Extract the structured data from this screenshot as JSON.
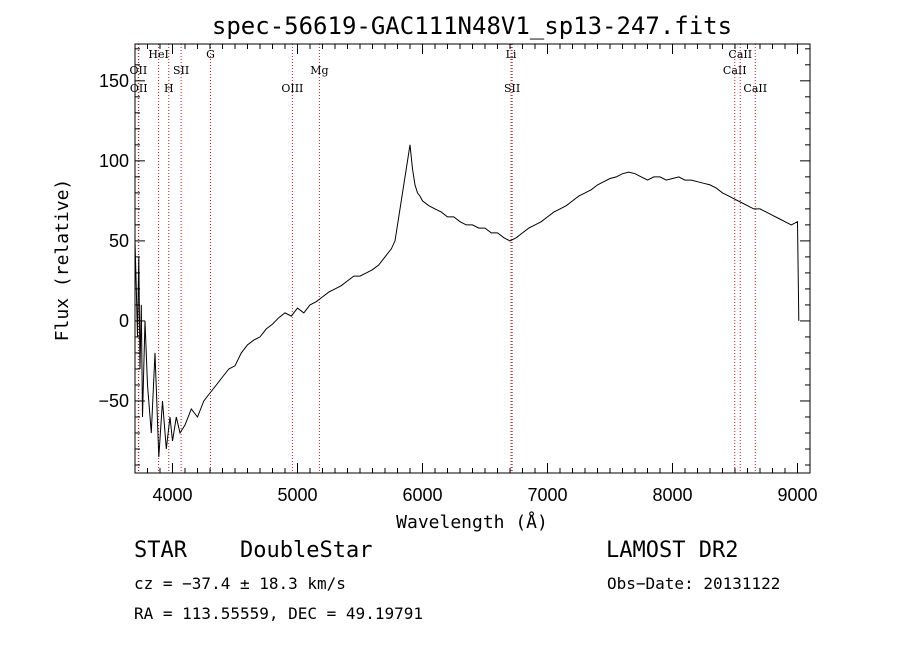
{
  "chart_data": {
    "type": "line",
    "title": "spec-56619-GAC111N48V1_sp13-247.fits",
    "xlabel": "Wavelength (Å)",
    "ylabel": "Flux (relative)",
    "xlim": [
      3700,
      9100
    ],
    "ylim": [
      -95,
      173
    ],
    "x_ticks": [
      4000,
      5000,
      6000,
      7000,
      8000,
      9000
    ],
    "y_ticks": [
      -50,
      0,
      50,
      100,
      150
    ],
    "grid": false,
    "series": [
      {
        "x": [
          3700,
          3710,
          3720,
          3730,
          3740,
          3750,
          3760,
          3780,
          3800,
          3830,
          3860,
          3890,
          3920,
          3950,
          3980,
          4000,
          4030,
          4060,
          4100,
          4150,
          4200,
          4250,
          4300,
          4350,
          4400,
          4450,
          4500,
          4550,
          4600,
          4650,
          4700,
          4750,
          4800,
          4850,
          4900,
          4950,
          5000,
          5050,
          5100,
          5150,
          5200,
          5250,
          5300,
          5350,
          5400,
          5450,
          5500,
          5550,
          5600,
          5650,
          5700,
          5750,
          5780,
          5800,
          5820,
          5840,
          5860,
          5880,
          5900,
          5920,
          5940,
          5960,
          5980,
          6000,
          6050,
          6100,
          6150,
          6200,
          6250,
          6300,
          6350,
          6400,
          6450,
          6500,
          6550,
          6600,
          6650,
          6700,
          6750,
          6800,
          6850,
          6900,
          6950,
          7000,
          7050,
          7100,
          7150,
          7200,
          7250,
          7300,
          7350,
          7400,
          7450,
          7500,
          7550,
          7600,
          7650,
          7700,
          7750,
          7800,
          7850,
          7900,
          7950,
          8000,
          8050,
          8100,
          8150,
          8200,
          8250,
          8300,
          8350,
          8400,
          8450,
          8500,
          8550,
          8600,
          8650,
          8700,
          8750,
          8800,
          8850,
          8900,
          8950,
          9000,
          9010
        ],
        "y": [
          50,
          20,
          -10,
          40,
          -30,
          10,
          -60,
          0,
          -40,
          -70,
          -20,
          -85,
          -50,
          -80,
          -60,
          -75,
          -60,
          -70,
          -65,
          -55,
          -60,
          -50,
          -45,
          -40,
          -35,
          -30,
          -28,
          -20,
          -15,
          -12,
          -10,
          -5,
          -2,
          2,
          5,
          3,
          8,
          5,
          10,
          12,
          15,
          18,
          20,
          22,
          25,
          28,
          28,
          30,
          32,
          35,
          40,
          45,
          50,
          60,
          70,
          80,
          90,
          100,
          110,
          95,
          85,
          80,
          78,
          75,
          72,
          70,
          68,
          65,
          65,
          62,
          60,
          60,
          58,
          58,
          55,
          55,
          52,
          50,
          52,
          55,
          58,
          60,
          62,
          65,
          68,
          70,
          72,
          75,
          78,
          80,
          82,
          85,
          87,
          89,
          90,
          92,
          93,
          92,
          90,
          88,
          90,
          90,
          88,
          89,
          90,
          88,
          88,
          87,
          86,
          85,
          83,
          80,
          78,
          76,
          74,
          72,
          70,
          70,
          68,
          66,
          64,
          62,
          60,
          62,
          0
        ]
      }
    ],
    "lines": [
      {
        "x": 3727,
        "label": "OII",
        "row": 1
      },
      {
        "x": 3730,
        "label": "OII",
        "row": 2
      },
      {
        "x": 3889,
        "label": "HeI",
        "row": 0
      },
      {
        "x": 3970,
        "label": "H",
        "row": 2
      },
      {
        "x": 4069,
        "label": "SII",
        "row": 1
      },
      {
        "x": 4304,
        "label": "G",
        "row": 0
      },
      {
        "x": 4959,
        "label": "OIII",
        "row": 2
      },
      {
        "x": 5175,
        "label": "Mg",
        "row": 1
      },
      {
        "x": 6708,
        "label": "Li",
        "row": 0
      },
      {
        "x": 6717,
        "label": "SII",
        "row": 2
      },
      {
        "x": 8498,
        "label": "CaII",
        "row": 1
      },
      {
        "x": 8542,
        "label": "CaII",
        "row": 0
      },
      {
        "x": 8662,
        "label": "CaII",
        "row": 2
      }
    ]
  },
  "info": {
    "class": "STAR",
    "subclass": "DoubleStar",
    "survey": "LAMOST DR2",
    "cz": "cz = −37.4 ± 18.3 km/s",
    "obsdate": "Obs−Date: 20131122",
    "radec": "RA = 113.55559, DEC =  49.19791"
  },
  "colors": {
    "axis": "#000000",
    "spectrum": "#000000",
    "linemarker": "#b22222"
  }
}
